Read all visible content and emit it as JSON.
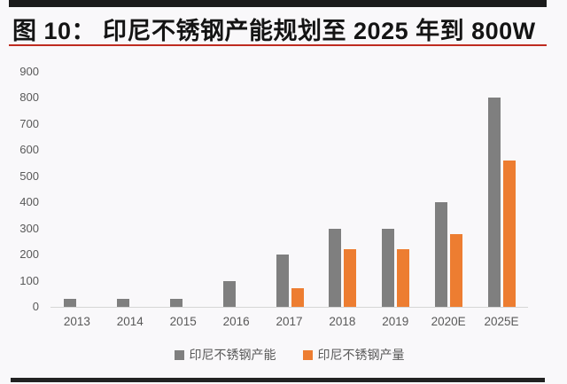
{
  "header": {
    "title": "图 10：  印尼不锈钢产能规划至 2025 年到 800W"
  },
  "colors": {
    "capacity_bar": "#7f7f7f",
    "output_bar": "#ED7D31",
    "title_underline": "#bf2b20",
    "axis_text": "#595959",
    "page_background": "#f9f8fa",
    "border_bars": "#1b1b1b"
  },
  "chart_data": {
    "type": "bar",
    "title": "印尼不锈钢产能规划至 2025 年到 800W",
    "categories": [
      "2013",
      "2014",
      "2015",
      "2016",
      "2017",
      "2018",
      "2019",
      "2020E",
      "2025E"
    ],
    "series": [
      {
        "name": "印尼不锈钢产能",
        "color": "#7f7f7f",
        "values": [
          30,
          30,
          30,
          100,
          200,
          300,
          300,
          400,
          800
        ]
      },
      {
        "name": "印尼不锈钢产量",
        "color": "#ED7D31",
        "values": [
          null,
          null,
          null,
          null,
          70,
          220,
          220,
          280,
          560
        ]
      }
    ],
    "xlabel": "",
    "ylabel": "",
    "ylim": [
      0,
      900
    ],
    "ytick_step": 100,
    "ytick_labels": [
      "0",
      "100",
      "200",
      "300",
      "400",
      "500",
      "600",
      "700",
      "800",
      "900"
    ],
    "grid": false,
    "legend_position": "bottom"
  }
}
